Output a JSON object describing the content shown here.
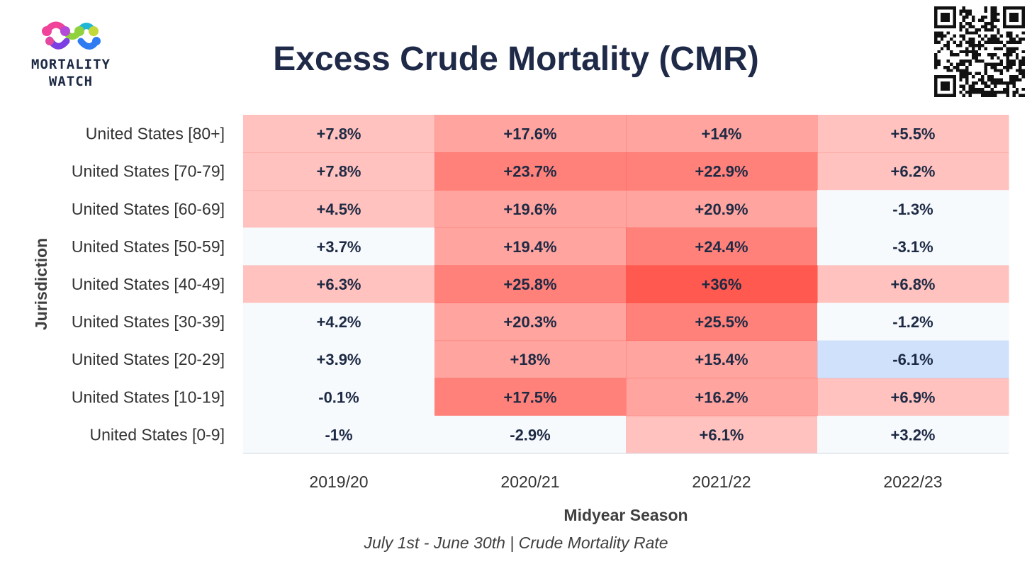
{
  "header": {
    "logo_line1": "MORTALITY",
    "logo_line2": "WATCH",
    "title": "Excess Crude Mortality (CMR)"
  },
  "footer": {
    "note": "July 1st - June 30th | Crude Mortality Rate"
  },
  "colors": {
    "positive_base": "#ff5047",
    "negative_base": "#a8c8f8",
    "neutral": "#f6fafd",
    "text": "#1e2a44"
  },
  "chart_data": {
    "type": "heatmap",
    "title": "Excess Crude Mortality (CMR)",
    "xlabel": "Midyear Season",
    "ylabel": "Jurisdiction",
    "x_categories": [
      "2019/20",
      "2020/21",
      "2021/22",
      "2022/23"
    ],
    "y_categories": [
      "United States [80+]",
      "United States [70-79]",
      "United States [60-69]",
      "United States [50-59]",
      "United States [40-49]",
      "United States [30-39]",
      "United States [20-29]",
      "United States [10-19]",
      "United States [0-9]"
    ],
    "labels": [
      [
        "+7.8%",
        "+17.6%",
        "+14%",
        "+5.5%"
      ],
      [
        "+7.8%",
        "+23.7%",
        "+22.9%",
        "+6.2%"
      ],
      [
        "+4.5%",
        "+19.6%",
        "+20.9%",
        "-1.3%"
      ],
      [
        "+3.7%",
        "+19.4%",
        "+24.4%",
        "-3.1%"
      ],
      [
        "+6.3%",
        "+25.8%",
        "+36%",
        "+6.8%"
      ],
      [
        "+4.2%",
        "+20.3%",
        "+25.5%",
        "-1.2%"
      ],
      [
        "+3.9%",
        "+18%",
        "+15.4%",
        "-6.1%"
      ],
      [
        "-0.1%",
        "+17.5%",
        "+16.2%",
        "+6.9%"
      ],
      [
        "-1%",
        "-2.9%",
        "+6.1%",
        "+3.2%"
      ]
    ],
    "values": [
      [
        7.8,
        17.6,
        14,
        5.5
      ],
      [
        7.8,
        23.7,
        22.9,
        6.2
      ],
      [
        4.5,
        19.6,
        20.9,
        -1.3
      ],
      [
        3.7,
        19.4,
        24.4,
        -3.1
      ],
      [
        6.3,
        25.8,
        36,
        6.8
      ],
      [
        4.2,
        20.3,
        25.5,
        -1.2
      ],
      [
        3.9,
        18,
        15.4,
        -6.1
      ],
      [
        -0.1,
        17.5,
        16.2,
        6.9
      ],
      [
        -1,
        -2.9,
        6.1,
        3.2
      ]
    ],
    "color_levels": [
      [
        1,
        2,
        2,
        1
      ],
      [
        1,
        3,
        3,
        1
      ],
      [
        1,
        2,
        2,
        0
      ],
      [
        0,
        2,
        3,
        0
      ],
      [
        1,
        3,
        4,
        1
      ],
      [
        0,
        2,
        3,
        0
      ],
      [
        0,
        2,
        2,
        -1
      ],
      [
        0,
        3,
        2,
        1
      ],
      [
        0,
        0,
        1,
        0
      ]
    ]
  }
}
